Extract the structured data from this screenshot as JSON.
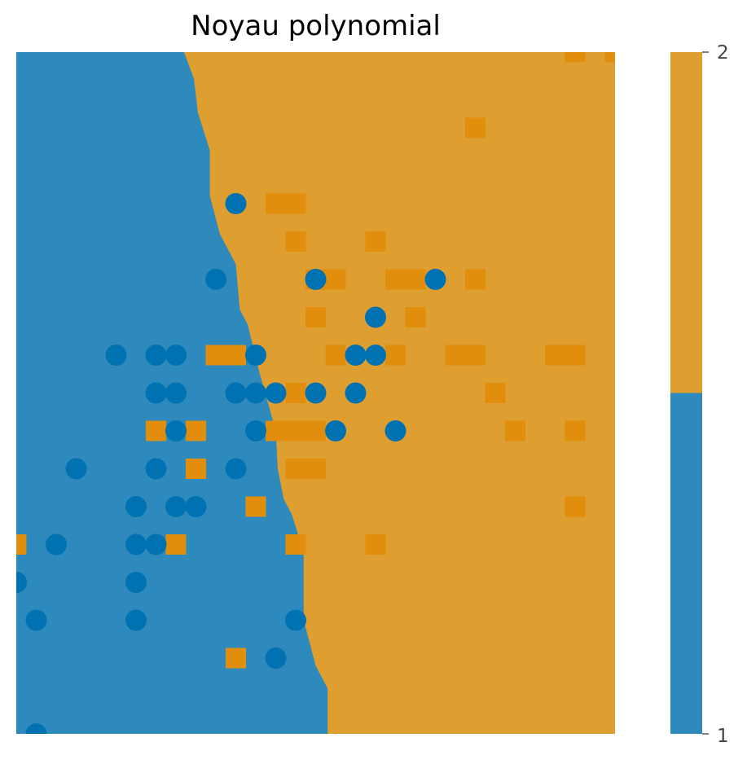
{
  "chart_data": {
    "type": "scatter",
    "title": "Noyau polynomial",
    "xlabel": "",
    "ylabel": "",
    "xlim": [
      0,
      30
    ],
    "ylim": [
      0,
      18
    ],
    "grid": false,
    "colors": {
      "class_1_region": "#2e89bc",
      "class_2_region": "#df9e30",
      "class_1_points": "#0072b2",
      "class_2_points": "#e08e0b"
    },
    "boundary": {
      "description": "decision boundary x where class changes from 1 (left) to 2 (right), per y",
      "y": [
        0,
        1.2,
        1.8,
        3,
        4.8,
        5.8,
        6.2,
        7,
        8,
        9.7,
        10.8,
        11.2,
        12.4,
        13.2,
        14.2,
        15.4,
        16.4,
        17.3,
        18
      ],
      "x": [
        15.6,
        15.6,
        15.0,
        14.4,
        14.4,
        13.8,
        13.4,
        13.1,
        13.0,
        12.1,
        11.6,
        11.2,
        11.0,
        10.2,
        9.7,
        9.7,
        9.1,
        8.9,
        8.4
      ]
    },
    "series": [
      {
        "class": "1",
        "marker": "circle",
        "points": [
          [
            11,
            14
          ],
          [
            10,
            12
          ],
          [
            15,
            12
          ],
          [
            21,
            12
          ],
          [
            18,
            11
          ],
          [
            5,
            10
          ],
          [
            7,
            10
          ],
          [
            8,
            10
          ],
          [
            12,
            10
          ],
          [
            17,
            10
          ],
          [
            18,
            10
          ],
          [
            7,
            9
          ],
          [
            8,
            9
          ],
          [
            11,
            9
          ],
          [
            12,
            9
          ],
          [
            13,
            9
          ],
          [
            15,
            9
          ],
          [
            17,
            9
          ],
          [
            8,
            8
          ],
          [
            12,
            8
          ],
          [
            16,
            8
          ],
          [
            19,
            8
          ],
          [
            3,
            7
          ],
          [
            7,
            7
          ],
          [
            11,
            7
          ],
          [
            6,
            6
          ],
          [
            8,
            6
          ],
          [
            9,
            6
          ],
          [
            2,
            5
          ],
          [
            6,
            5
          ],
          [
            7,
            5
          ],
          [
            0,
            4
          ],
          [
            6,
            4
          ],
          [
            1,
            3
          ],
          [
            6,
            3
          ],
          [
            14,
            3
          ],
          [
            13,
            2
          ],
          [
            1,
            0
          ]
        ]
      },
      {
        "class": "2",
        "marker": "square",
        "points": [
          [
            28,
            18
          ],
          [
            30,
            18
          ],
          [
            23,
            16
          ],
          [
            13,
            14
          ],
          [
            14,
            14
          ],
          [
            14,
            13
          ],
          [
            18,
            13
          ],
          [
            15,
            12
          ],
          [
            16,
            12
          ],
          [
            19,
            12
          ],
          [
            20,
            12
          ],
          [
            23,
            12
          ],
          [
            15,
            11
          ],
          [
            20,
            11
          ],
          [
            10,
            10
          ],
          [
            11,
            10
          ],
          [
            16,
            10
          ],
          [
            19,
            10
          ],
          [
            22,
            10
          ],
          [
            23,
            10
          ],
          [
            27,
            10
          ],
          [
            28,
            10
          ],
          [
            14,
            9
          ],
          [
            24,
            9
          ],
          [
            7,
            8
          ],
          [
            9,
            8
          ],
          [
            13,
            8
          ],
          [
            14,
            8
          ],
          [
            15,
            8
          ],
          [
            25,
            8
          ],
          [
            28,
            8
          ],
          [
            9,
            7
          ],
          [
            14,
            7
          ],
          [
            15,
            7
          ],
          [
            12,
            6
          ],
          [
            28,
            6
          ],
          [
            0,
            5
          ],
          [
            8,
            5
          ],
          [
            14,
            5
          ],
          [
            18,
            5
          ],
          [
            11,
            2
          ]
        ]
      }
    ],
    "colorbar": {
      "ticks": [
        "1",
        "2"
      ],
      "bands": [
        "#2e89bc",
        "#df9e30"
      ]
    }
  }
}
